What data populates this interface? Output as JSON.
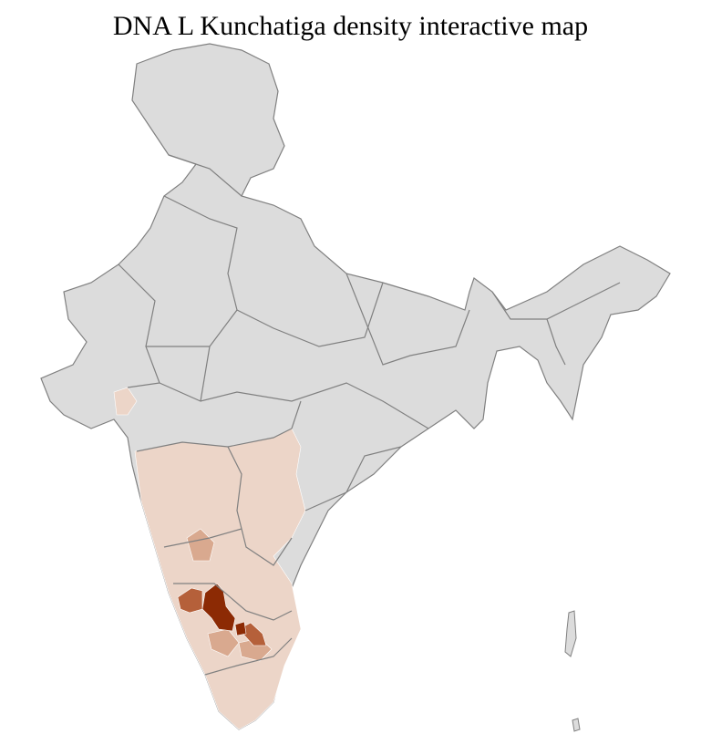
{
  "title": "DNA L Kunchatiga density interactive map",
  "colors": {
    "no_data": "#dcdcdc",
    "level_1": "#ecd5c8",
    "level_2": "#d9a98f",
    "level_3": "#b5603a",
    "level_4": "#8c2a04",
    "state_border": "#808080",
    "district_border": "#ffffff"
  }
}
